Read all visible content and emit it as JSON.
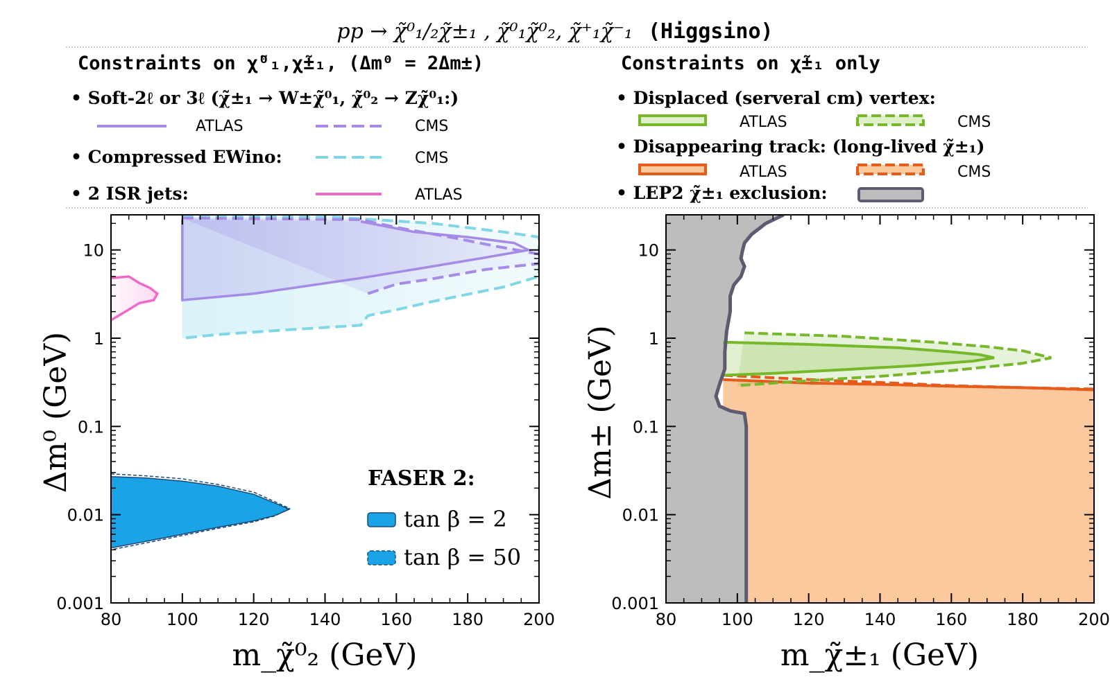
{
  "title": {
    "process": "pp → χ̃⁰₁/₂χ̃±₁ , χ̃⁰₁χ̃⁰₂, χ̃⁺₁χ̃⁻₁",
    "scenario": "(Higgsino)"
  },
  "legend_left": {
    "heading": "Constraints on χ̃⁰₁,χ̃±₁, (Δm⁰ = 2Δm±)",
    "groups": [
      {
        "label": "• Soft-2ℓ or 3ℓ (χ̃±₁ → W±χ̃⁰₁, χ̃⁰₂ → Zχ̃⁰₁:)",
        "entries": [
          {
            "name": "ATLAS"
          },
          {
            "name": "CMS"
          }
        ]
      },
      {
        "label": "• Compressed EWino:",
        "entries": [
          {
            "name": "CMS"
          }
        ]
      },
      {
        "label": "• 2 ISR jets:",
        "entries": [
          {
            "name": "ATLAS"
          }
        ]
      }
    ]
  },
  "legend_right": {
    "heading": "Constraints on χ̃±₁ only",
    "groups": [
      {
        "label": "• Displaced (serveral cm) vertex:",
        "entries": [
          {
            "name": "ATLAS"
          },
          {
            "name": "CMS"
          }
        ]
      },
      {
        "label": "• Disappearing track: (long-lived χ̃±₁)",
        "entries": [
          {
            "name": "ATLAS"
          },
          {
            "name": "CMS"
          }
        ]
      },
      {
        "label": "• LEP2 χ̃±₁ exclusion:",
        "entries": []
      }
    ]
  },
  "colors": {
    "soft_lepton": "#a58ae6",
    "ewino": "#7fd6e6",
    "isr": "#ee6ac8",
    "faser": "#1aa3e6",
    "faser_edge": "#1a4a7a",
    "displaced": "#76b82a",
    "disappearing": "#e65a1a",
    "disappearing_fill": "#fcc89e",
    "lep2_fill": "#bdbdbd",
    "lep2_edge": "#5c5c70"
  },
  "chart_data": [
    {
      "type": "area",
      "title": "Constraints on χ̃⁰₁,χ̃±₁",
      "xlabel": "m_χ̃⁰₂ (GeV)",
      "ylabel": "Δm⁰ (GeV)",
      "xlim": [
        80,
        200
      ],
      "ylim": [
        0.001,
        25
      ],
      "yscale": "log",
      "xticks": [
        80,
        100,
        120,
        140,
        160,
        180,
        200
      ],
      "xtick_labels": [
        "80",
        "100",
        "120",
        "140",
        "160",
        "180",
        "200"
      ],
      "yticks": [
        0.001,
        0.01,
        0.1,
        1,
        10
      ],
      "ytick_labels": [
        "0.001",
        "0.01",
        "0.1",
        "1",
        "10"
      ],
      "faser_legend": {
        "title": "FASER 2:",
        "entries": [
          {
            "label": "tan β = 2"
          },
          {
            "label": "tan β = 50"
          }
        ]
      },
      "series": [
        {
          "name": "Soft-2ℓ/3ℓ ATLAS",
          "style": "solid",
          "color_key": "soft_lepton",
          "points": [
            [
              100,
              22
            ],
            [
              100,
              2.7
            ],
            [
              120,
              3.2
            ],
            [
              150,
              4.8
            ],
            [
              170,
              6.5
            ],
            [
              185,
              8.2
            ],
            [
              197,
              10
            ],
            [
              193,
              12
            ],
            [
              180,
              14
            ],
            [
              165,
              16
            ],
            [
              150,
              21
            ]
          ]
        },
        {
          "name": "Soft-2ℓ/3ℓ CMS",
          "style": "dashed",
          "color_key": "soft_lepton",
          "points": [
            [
              100,
              23
            ],
            [
              150,
              22
            ],
            [
              160,
              18
            ],
            [
              175,
              14
            ],
            [
              188,
              11
            ],
            [
              200,
              9
            ],
            [
              200,
              7
            ],
            [
              185,
              6
            ],
            [
              170,
              4.7
            ],
            [
              160,
              4.1
            ],
            [
              152,
              3.2
            ]
          ]
        },
        {
          "name": "Compressed EWino CMS",
          "style": "dashed",
          "color_key": "ewino",
          "points": [
            [
              100,
              24
            ],
            [
              140,
              24
            ],
            [
              170,
              20
            ],
            [
              190,
              16
            ],
            [
              200,
              14
            ],
            [
              200,
              5
            ],
            [
              190,
              3.8
            ],
            [
              170,
              2.6
            ],
            [
              160,
              2.1
            ],
            [
              152,
              1.8
            ],
            [
              150,
              1.4
            ],
            [
              130,
              1.25
            ],
            [
              110,
              1.1
            ],
            [
              100,
              1.0
            ]
          ]
        },
        {
          "name": "2 ISR jets ATLAS",
          "style": "solid",
          "color_key": "isr",
          "points": [
            [
              80,
              4.8
            ],
            [
              85,
              5.0
            ],
            [
              88,
              4.2
            ],
            [
              91,
              3.7
            ],
            [
              93,
              3.2
            ],
            [
              92,
              2.7
            ],
            [
              88,
              2.5
            ],
            [
              84,
              2.0
            ],
            [
              80,
              1.6
            ]
          ]
        },
        {
          "name": "FASER 2 tan β = 2",
          "style": "solid",
          "color_key": "faser",
          "points": [
            [
              80,
              0.027
            ],
            [
              90,
              0.026
            ],
            [
              100,
              0.024
            ],
            [
              110,
              0.021
            ],
            [
              120,
              0.017
            ],
            [
              126,
              0.0135
            ],
            [
              130,
              0.0115
            ],
            [
              126,
              0.0098
            ],
            [
              120,
              0.0085
            ],
            [
              110,
              0.0072
            ],
            [
              100,
              0.006
            ],
            [
              90,
              0.005
            ],
            [
              80,
              0.0042
            ]
          ]
        },
        {
          "name": "FASER 2 tan β = 50",
          "style": "dashed",
          "color_key": "faser",
          "points": [
            [
              80,
              0.029
            ],
            [
              90,
              0.0275
            ],
            [
              100,
              0.0255
            ],
            [
              110,
              0.022
            ],
            [
              120,
              0.018
            ],
            [
              126,
              0.014
            ],
            [
              130,
              0.0118
            ],
            [
              126,
              0.0097
            ],
            [
              120,
              0.0083
            ],
            [
              110,
              0.007
            ],
            [
              100,
              0.0058
            ],
            [
              90,
              0.0048
            ],
            [
              80,
              0.004
            ]
          ]
        }
      ]
    },
    {
      "type": "area",
      "title": "Constraints on χ̃±₁ only",
      "xlabel": "m_χ̃±₁ (GeV)",
      "ylabel": "Δm± (GeV)",
      "xlim": [
        80,
        200
      ],
      "ylim": [
        0.001,
        25
      ],
      "yscale": "log",
      "xticks": [
        80,
        100,
        120,
        140,
        160,
        180,
        200
      ],
      "xtick_labels": [
        "80",
        "100",
        "120",
        "140",
        "160",
        "180",
        "200"
      ],
      "yticks": [
        0.001,
        0.01,
        0.1,
        1,
        10
      ],
      "ytick_labels": [
        "0.001",
        "0.01",
        "0.1",
        "1",
        "10"
      ],
      "series": [
        {
          "name": "LEP2 exclusion",
          "style": "solid",
          "color_key": "lep2_edge",
          "points": [
            [
              113,
              25
            ],
            [
              108,
              20
            ],
            [
              104,
              15
            ],
            [
              102,
              12
            ],
            [
              101.5,
              10
            ],
            [
              101,
              8
            ],
            [
              102,
              6.5
            ],
            [
              101,
              5
            ],
            [
              99,
              4
            ],
            [
              98,
              3
            ],
            [
              98,
              2
            ],
            [
              97,
              1.2
            ],
            [
              96.5,
              0.7
            ],
            [
              96.5,
              0.45
            ],
            [
              95,
              0.3
            ],
            [
              94,
              0.22
            ],
            [
              95,
              0.17
            ],
            [
              98,
              0.15
            ],
            [
              102,
              0.14
            ],
            [
              102.5,
              0.1
            ],
            [
              102.5,
              0.001
            ]
          ]
        },
        {
          "name": "Displaced vertex ATLAS",
          "style": "solid",
          "color_key": "displaced",
          "points": [
            [
              96,
              0.9
            ],
            [
              120,
              0.85
            ],
            [
              145,
              0.78
            ],
            [
              160,
              0.7
            ],
            [
              168,
              0.65
            ],
            [
              172,
              0.6
            ],
            [
              166,
              0.55
            ],
            [
              150,
              0.49
            ],
            [
              130,
              0.44
            ],
            [
              110,
              0.4
            ],
            [
              96,
              0.38
            ]
          ]
        },
        {
          "name": "Displaced vertex CMS",
          "style": "dashed",
          "color_key": "displaced",
          "points": [
            [
              102,
              1.15
            ],
            [
              130,
              1.05
            ],
            [
              155,
              0.9
            ],
            [
              170,
              0.8
            ],
            [
              180,
              0.72
            ],
            [
              188,
              0.6
            ],
            [
              180,
              0.52
            ],
            [
              160,
              0.43
            ],
            [
              140,
              0.37
            ],
            [
              120,
              0.33
            ],
            [
              100,
              0.29
            ]
          ]
        },
        {
          "name": "Disappearing track ATLAS",
          "style": "solid",
          "color_key": "disappearing",
          "points": [
            [
              96,
              0.34
            ],
            [
              120,
              0.31
            ],
            [
              140,
              0.3
            ],
            [
              160,
              0.285
            ],
            [
              180,
              0.275
            ],
            [
              200,
              0.26
            ]
          ]
        },
        {
          "name": "Disappearing track CMS",
          "style": "dashed",
          "color_key": "disappearing",
          "points": [
            [
              96,
              0.38
            ],
            [
              120,
              0.34
            ],
            [
              140,
              0.315
            ],
            [
              160,
              0.29
            ],
            [
              180,
              0.275
            ],
            [
              200,
              0.265
            ]
          ]
        }
      ]
    }
  ]
}
